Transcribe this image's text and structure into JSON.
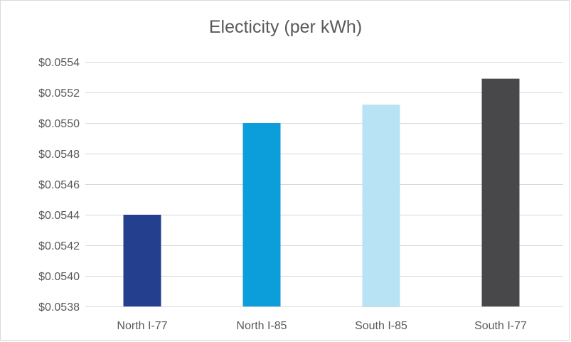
{
  "chart_data": {
    "type": "bar",
    "title": "Electicity (per kWh)",
    "xlabel": "",
    "ylabel": "",
    "categories": [
      "North I-77",
      "North I-85",
      "South I-85",
      "South I-77"
    ],
    "values": [
      0.0544,
      0.055,
      0.05512,
      0.05529
    ],
    "colors": [
      "#253f8f",
      "#0b9edb",
      "#b7e3f5",
      "#48484a"
    ],
    "ylim": [
      0.0538,
      0.0554
    ],
    "yticks": [
      0.0538,
      0.054,
      0.0542,
      0.0544,
      0.0546,
      0.0548,
      0.055,
      0.0552,
      0.0554
    ],
    "ytick_labels": [
      "$0.0538",
      "$0.0540",
      "$0.0542",
      "$0.0544",
      "$0.0546",
      "$0.0548",
      "$0.0550",
      "$0.0552",
      "$0.0554"
    ],
    "grid": true,
    "legend": "none",
    "gridline_color": "#d9d9d9"
  }
}
